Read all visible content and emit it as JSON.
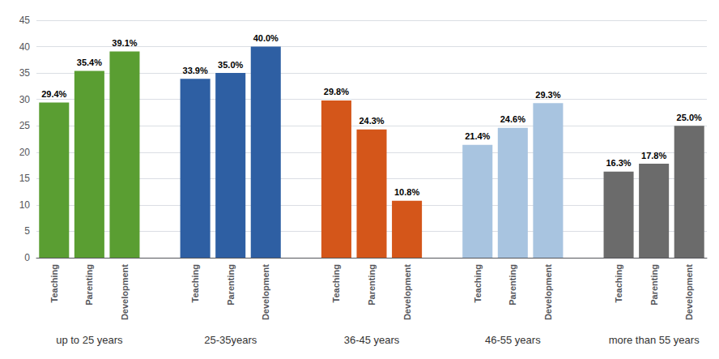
{
  "chart_data": {
    "type": "bar",
    "series": [
      {
        "name": "up to 25 years",
        "color": "#5a9e32",
        "categories": [
          "Teaching",
          "Parenting",
          "Development"
        ],
        "values": [
          29.4,
          35.4,
          39.1
        ],
        "value_labels": [
          "29.4%",
          "35.4%",
          "39.1%"
        ]
      },
      {
        "name": "25-35years",
        "color": "#2e5fa3",
        "categories": [
          "Teaching",
          "Parenting",
          "Development"
        ],
        "values": [
          33.9,
          35.0,
          40.0
        ],
        "value_labels": [
          "33.9%",
          "35.0%",
          "40.0%"
        ]
      },
      {
        "name": "36-45 years",
        "color": "#d4561a",
        "categories": [
          "Teaching",
          "Parenting",
          "Development"
        ],
        "values": [
          29.8,
          24.3,
          10.8
        ],
        "value_labels": [
          "29.8%",
          "24.3%",
          "10.8%"
        ]
      },
      {
        "name": "46-55 years",
        "color": "#a8c4e0",
        "categories": [
          "Teaching",
          "Parenting",
          "Development"
        ],
        "values": [
          21.4,
          24.6,
          29.3
        ],
        "value_labels": [
          "21.4%",
          "24.6%",
          "29.3%"
        ]
      },
      {
        "name": "more than 55 years",
        "color": "#6b6b6b",
        "categories": [
          "Teaching",
          "Parenting",
          "Development"
        ],
        "values": [
          16.3,
          17.8,
          25.0
        ],
        "value_labels": [
          "16.3%",
          "17.8%",
          "25.0%"
        ]
      }
    ],
    "ylim": [
      0,
      45
    ],
    "yticks": [
      0,
      5,
      10,
      15,
      20,
      25,
      30,
      35,
      40,
      45
    ],
    "grid": true,
    "data_labels": true
  }
}
